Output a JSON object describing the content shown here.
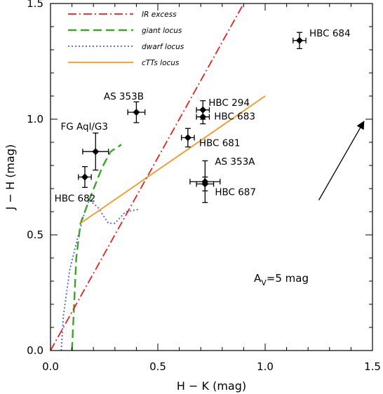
{
  "chart_data": {
    "type": "scatter",
    "xlabel": "H − K (mag)",
    "ylabel": "J − H (mag)",
    "xlim": [
      0.0,
      1.5
    ],
    "ylim": [
      0.0,
      1.5
    ],
    "x_ticks": [
      "0.0",
      "0.5",
      "1.0",
      "1.5"
    ],
    "y_ticks": [
      "0.0",
      "0.5",
      "1.0",
      "1.5"
    ],
    "grid": false,
    "legend_position": "top-left",
    "legend": [
      {
        "label": "IR excess",
        "color": "#e8201a",
        "style": "dash-dot"
      },
      {
        "label": "giant locus",
        "color": "#3aa52a",
        "style": "long-dash"
      },
      {
        "label": "dwarf locus",
        "color": "#4b5fe0",
        "style": "dotted"
      },
      {
        "label": "cTTs locus",
        "color": "#f5961e",
        "style": "solid"
      }
    ],
    "lines": {
      "ir_excess": [
        [
          0.0,
          0.0
        ],
        [
          0.9,
          1.5
        ]
      ],
      "ctts_locus": [
        [
          0.14,
          0.55
        ],
        [
          1.0,
          1.1
        ]
      ],
      "giant_locus": [
        [
          0.1,
          0.0
        ],
        [
          0.11,
          0.2
        ],
        [
          0.12,
          0.4
        ],
        [
          0.14,
          0.55
        ],
        [
          0.18,
          0.65
        ],
        [
          0.24,
          0.79
        ],
        [
          0.28,
          0.86
        ],
        [
          0.33,
          0.89
        ]
      ],
      "dwarf_locus": [
        [
          0.05,
          0.0
        ],
        [
          0.06,
          0.15
        ],
        [
          0.09,
          0.35
        ],
        [
          0.13,
          0.5
        ],
        [
          0.16,
          0.6
        ],
        [
          0.18,
          0.65
        ],
        [
          0.22,
          0.62
        ],
        [
          0.27,
          0.55
        ],
        [
          0.3,
          0.55
        ],
        [
          0.35,
          0.6
        ],
        [
          0.41,
          0.61
        ]
      ]
    },
    "points": [
      {
        "label": "HBC 684",
        "x": 1.16,
        "y": 1.34,
        "xerr": 0.03,
        "yerr": 0.035
      },
      {
        "label": "AS 353B",
        "x": 0.4,
        "y": 1.03,
        "xerr": 0.04,
        "yerr": 0.045
      },
      {
        "label": "HBC 294",
        "x": 0.71,
        "y": 1.04,
        "xerr": 0.03,
        "yerr": 0.04
      },
      {
        "label": "HBC 683",
        "x": 0.71,
        "y": 1.01,
        "xerr": 0.03,
        "yerr": 0.03
      },
      {
        "label": "HBC 681",
        "x": 0.64,
        "y": 0.92,
        "xerr": 0.03,
        "yerr": 0.04
      },
      {
        "label": "FG Aql/G3",
        "x": 0.21,
        "y": 0.86,
        "xerr": 0.06,
        "yerr": 0.08
      },
      {
        "label": "HBC 682",
        "x": 0.16,
        "y": 0.75,
        "xerr": 0.03,
        "yerr": 0.045
      },
      {
        "label": "AS 353A",
        "x": 0.72,
        "y": 0.73,
        "xerr": 0.07,
        "yerr": 0.09
      },
      {
        "label": "HBC 687",
        "x": 0.72,
        "y": 0.72,
        "xerr": 0.04,
        "yerr": 0.03
      }
    ],
    "annotations": [
      {
        "label_main": "A",
        "label_sub": "V",
        "label_rest": "=5 mag",
        "arrow_from": [
          1.25,
          0.65
        ],
        "arrow_to": [
          1.46,
          0.99
        ]
      }
    ]
  }
}
